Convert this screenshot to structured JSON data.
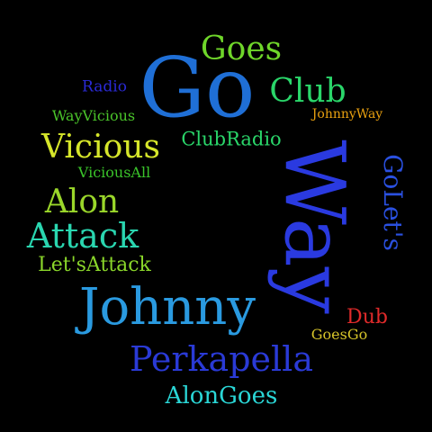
{
  "cloud": {
    "background": "#000000",
    "words": [
      {
        "text": "Go",
        "color": "#1f6fd6"
      },
      {
        "text": "Goes",
        "color": "#6fd62a"
      },
      {
        "text": "Club",
        "color": "#2ad66a"
      },
      {
        "text": "Radio",
        "color": "#2a2ad6"
      },
      {
        "text": "WayVicious",
        "color": "#4ac42a"
      },
      {
        "text": "JohnnyWay",
        "color": "#e8a010"
      },
      {
        "text": "Vicious",
        "color": "#d6e62a"
      },
      {
        "text": "ClubRadio",
        "color": "#2ad66a"
      },
      {
        "text": "ViciousAll",
        "color": "#3ac42a"
      },
      {
        "text": "Way",
        "color": "#2a3ae0"
      },
      {
        "text": "GoLet's",
        "color": "#2a50e0"
      },
      {
        "text": "Alon",
        "color": "#9ad62a"
      },
      {
        "text": "Attack",
        "color": "#2ad6b0"
      },
      {
        "text": "Let'sAttack",
        "color": "#8ad62a"
      },
      {
        "text": "Johnny",
        "color": "#2a9ae0"
      },
      {
        "text": "Dub",
        "color": "#e02a2a"
      },
      {
        "text": "GoesGo",
        "color": "#d6c42a"
      },
      {
        "text": "Perkapella",
        "color": "#2a3ad6"
      },
      {
        "text": "AlonGoes",
        "color": "#2ad6d6"
      }
    ]
  }
}
